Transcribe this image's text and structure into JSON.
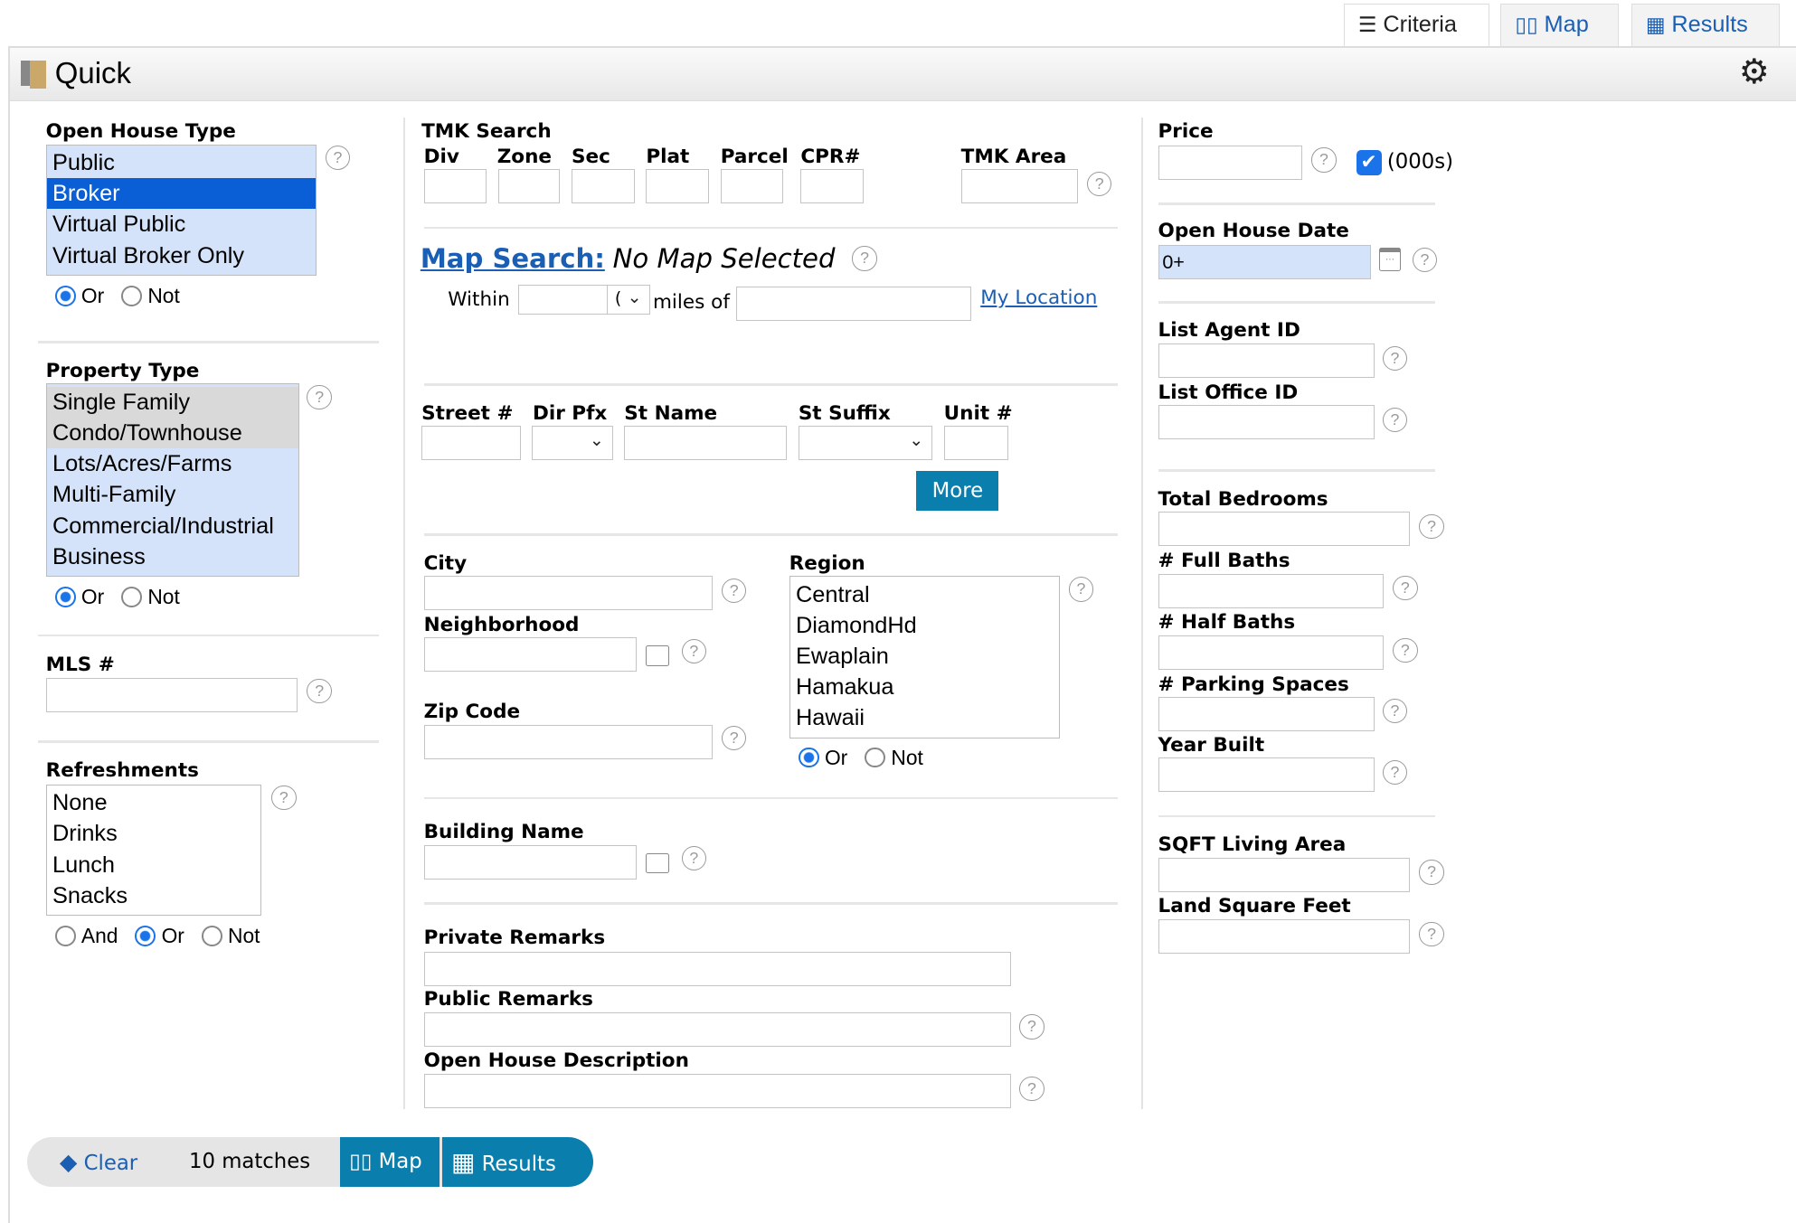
{
  "tabs": [
    {
      "label": "Criteria",
      "icon": "sliders-icon",
      "active": true
    },
    {
      "label": "Map",
      "icon": "map-icon"
    },
    {
      "label": "Results",
      "icon": "table-icon"
    }
  ],
  "header": {
    "title": "Quick",
    "settings_icon": "gear-icon"
  },
  "open_house_type": {
    "label": "Open House Type",
    "options": [
      "Public",
      "Broker",
      "Virtual Public",
      "Virtual Broker Only"
    ],
    "selected": "Broker",
    "mode": [
      "Or",
      "Not"
    ],
    "mode_selected": "Or"
  },
  "property_type": {
    "label": "Property Type",
    "options": [
      "Single Family",
      "Condo/Townhouse",
      "Lots/Acres/Farms",
      "Multi-Family",
      "Commercial/Industrial",
      "Business"
    ],
    "mode": [
      "Or",
      "Not"
    ],
    "mode_selected": "Or"
  },
  "mls": {
    "label": "MLS #",
    "value": ""
  },
  "refreshments": {
    "label": "Refreshments",
    "options": [
      "None",
      "Drinks",
      "Lunch",
      "Snacks"
    ],
    "mode": [
      "And",
      "Or",
      "Not"
    ],
    "mode_selected": "Or"
  },
  "tmk": {
    "label": "TMK Search",
    "fields": [
      "Div",
      "Zone",
      "Sec",
      "Plat",
      "Parcel",
      "CPR#"
    ],
    "area_label": "TMK Area"
  },
  "map_search": {
    "link": "Map Search:",
    "status": "No Map Selected",
    "within": "Within",
    "within_select": "(",
    "miles_of": "miles of",
    "my_location": "My Location"
  },
  "street": {
    "street_no": "Street #",
    "dir_pfx": "Dir Pfx",
    "st_name": "St Name",
    "st_suffix": "St Suffix",
    "unit": "Unit #",
    "more": "More"
  },
  "city": {
    "label": "City"
  },
  "neighborhood": {
    "label": "Neighborhood"
  },
  "zip": {
    "label": "Zip Code"
  },
  "region": {
    "label": "Region",
    "options": [
      "Central",
      "DiamondHd",
      "Ewaplain",
      "Hamakua",
      "Hawaii"
    ],
    "mode": [
      "Or",
      "Not"
    ],
    "mode_selected": "Or"
  },
  "building_name": {
    "label": "Building Name"
  },
  "remarks": {
    "private": "Private Remarks",
    "public": "Public Remarks",
    "oh_desc": "Open House Description"
  },
  "price": {
    "label": "Price",
    "thousands_label": "(000s)",
    "thousands_checked": true
  },
  "oh_date": {
    "label": "Open House Date",
    "value": "0+"
  },
  "agent": {
    "list_agent": "List Agent ID",
    "list_office": "List Office ID"
  },
  "rooms": {
    "bedrooms": "Total Bedrooms",
    "full_baths": "# Full Baths",
    "half_baths": "# Half Baths",
    "parking": "# Parking Spaces",
    "year_built": "Year Built"
  },
  "area": {
    "sqft": "SQFT Living Area",
    "land": "Land Square Feet"
  },
  "footer": {
    "clear": "Clear",
    "matches": "10 matches",
    "map": "Map",
    "results": "Results"
  },
  "colors": {
    "accent": "#0a7fad",
    "link": "#1a5fb4",
    "selected": "#0a5fd6",
    "list_bg": "#d4e3f9"
  }
}
